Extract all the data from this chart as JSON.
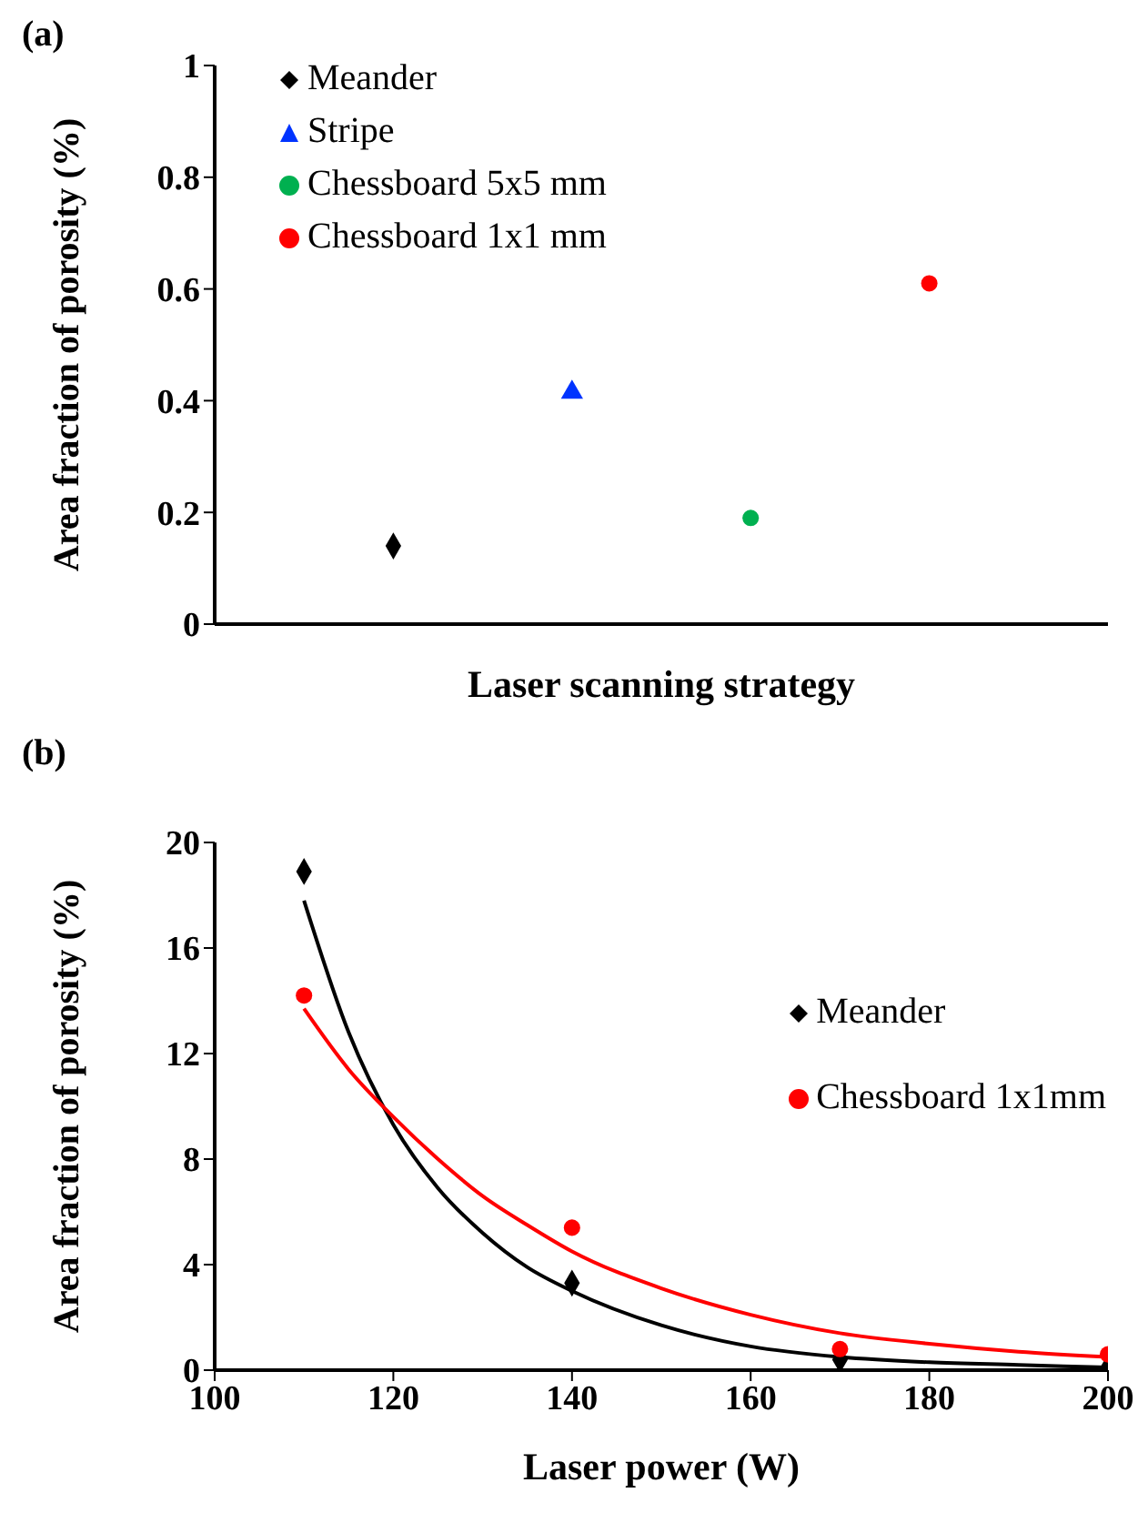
{
  "chart_data": [
    {
      "type": "scatter",
      "title": "(a)",
      "xlabel": "Laser scanning strategy",
      "ylabel": "Area fraction of porosity (%)",
      "categories": [
        null,
        null,
        null,
        null
      ],
      "ylim": [
        0,
        1
      ],
      "yticks": [
        0,
        0.2,
        0.4,
        0.6,
        0.8,
        1
      ],
      "legend": "top",
      "grid": false,
      "series": [
        {
          "name": "Meander",
          "color": "#000000",
          "marker": "diamond",
          "values": [
            0.14,
            null,
            null,
            null
          ]
        },
        {
          "name": "Stripe",
          "color": "#0033ff",
          "marker": "triangle",
          "values": [
            null,
            0.415,
            null,
            null
          ]
        },
        {
          "name": "Chessboard 5x5 mm",
          "color": "#00b050",
          "marker": "circle",
          "values": [
            null,
            null,
            0.19,
            null
          ]
        },
        {
          "name": "Chessboard 1x1 mm",
          "color": "#ff0000",
          "marker": "circle",
          "values": [
            null,
            null,
            null,
            0.61
          ]
        }
      ]
    },
    {
      "type": "scatter",
      "title": "(b)",
      "xlabel": "Laser power (W)",
      "ylabel": "Area fraction of porosity (%)",
      "x": [
        110,
        140,
        170,
        200
      ],
      "xlim": [
        100,
        200
      ],
      "xticks": [
        100,
        120,
        140,
        160,
        180,
        200
      ],
      "ylim": [
        0,
        20
      ],
      "yticks": [
        0,
        4,
        8,
        12,
        16,
        20
      ],
      "legend": "right",
      "grid": false,
      "series": [
        {
          "name": "Meander",
          "color": "#000000",
          "marker": "diamond",
          "values": [
            18.9,
            3.3,
            0.4,
            0.1
          ]
        },
        {
          "name": "Chessboard 1x1mm",
          "color": "#ff0000",
          "marker": "circle",
          "values": [
            14.2,
            5.4,
            0.8,
            0.6
          ]
        },
        {
          "type": "line",
          "color": "#000000",
          "marker": "none",
          "x": [
            110,
            115,
            120,
            125,
            130,
            135,
            140,
            150,
            160,
            170,
            180,
            190,
            200
          ],
          "values": [
            17.8,
            12.8,
            9.3,
            6.9,
            5.2,
            3.9,
            3.0,
            1.7,
            0.9,
            0.5,
            0.3,
            0.2,
            0.1
          ]
        },
        {
          "type": "line",
          "color": "#ff0000",
          "marker": "none",
          "x": [
            110,
            115,
            120,
            125,
            130,
            135,
            140,
            150,
            160,
            170,
            180,
            190,
            200
          ],
          "values": [
            13.7,
            11.4,
            9.6,
            8.0,
            6.6,
            5.5,
            4.5,
            3.1,
            2.1,
            1.4,
            1.0,
            0.7,
            0.5
          ]
        }
      ]
    }
  ]
}
